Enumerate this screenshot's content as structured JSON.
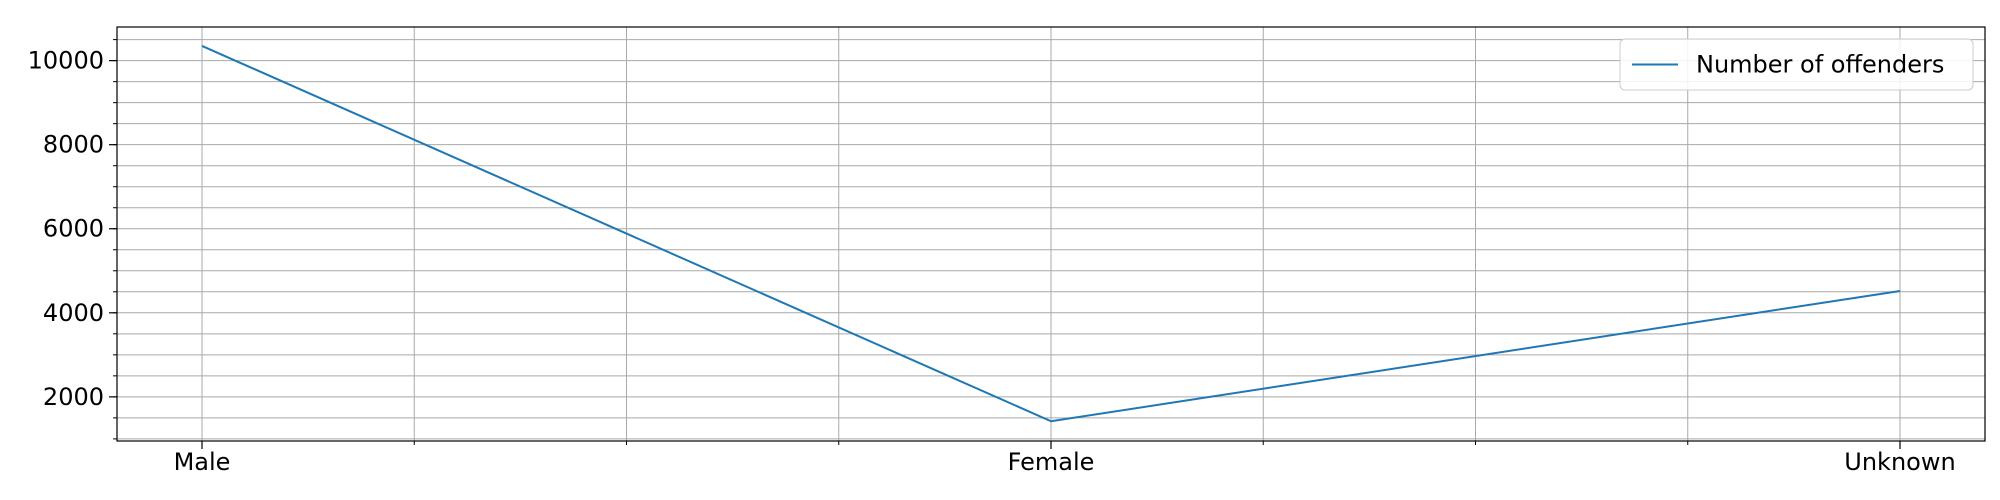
{
  "chart_data": {
    "type": "line",
    "categories": [
      "Male",
      "Female",
      "Unknown"
    ],
    "series": [
      {
        "name": "Number of offenders",
        "values": [
          10350,
          1420,
          4520
        ],
        "color": "#1f77b4"
      }
    ],
    "xlabel": "",
    "ylabel": "",
    "ylim": [
      950,
      10800
    ],
    "yticks": [
      2000,
      4000,
      6000,
      8000,
      10000
    ],
    "y_minor_step": 500,
    "x_minor_per_interval": 4,
    "grid": true,
    "legend": "top-right"
  }
}
